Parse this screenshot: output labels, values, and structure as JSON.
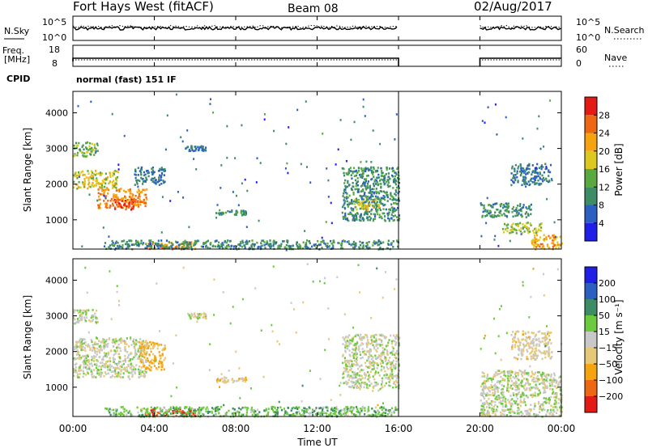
{
  "header": {
    "title": "Fort Hays West (fitACF)",
    "beam": "Beam 08",
    "date": "02/Aug/2017"
  },
  "noise_panel": {
    "left_label": "N.Sky",
    "right_label": "N.Search",
    "left_ticks": [
      "10^5",
      "10^0"
    ],
    "right_ticks": [
      "10^5",
      "10^0"
    ]
  },
  "freq_panel": {
    "left_label_1": "Freq.",
    "left_label_2": "[MHz]",
    "right_label": "Nave",
    "left_ticks": [
      "18",
      "8"
    ],
    "right_ticks": [
      "60",
      "0"
    ]
  },
  "cpid": {
    "label": "CPID",
    "value": "normal (fast) 151 IF"
  },
  "colors": {
    "power_scale": [
      "#1f1fe8",
      "#2c5fc2",
      "#3c8c66",
      "#5aa840",
      "#dcc81e",
      "#f5a30f",
      "#ee6814",
      "#e41a14"
    ],
    "velocity_scale": [
      "#e41a14",
      "#ee6814",
      "#f5a30f",
      "#e6c878",
      "#c8c8c8",
      "#6ccb3c",
      "#3c8c66",
      "#2c5fc2",
      "#1f1fe8"
    ]
  },
  "chart_data": [
    {
      "type": "heatmap",
      "name": "power",
      "ylabel": "Slant Range [km]",
      "xlabel": "Time UT",
      "xlim": [
        0,
        24
      ],
      "ylim": [
        180,
        4600
      ],
      "x_ticks": [
        "00:00",
        "04:00",
        "08:00",
        "12:00",
        "16:00",
        "20:00",
        "00:00"
      ],
      "y_ticks": [
        "1000",
        "2000",
        "3000",
        "4000"
      ],
      "data_gap_hours": [
        16.0,
        20.0
      ],
      "colorbar": {
        "label": "Power [dB]",
        "ticks": [
          "4",
          "8",
          "12",
          "16",
          "20",
          "24",
          "28"
        ],
        "range": [
          0,
          32
        ]
      },
      "regions": [
        {
          "t": [
            0.0,
            2.2
          ],
          "r": [
            1900,
            2400
          ],
          "level": 18
        },
        {
          "t": [
            1.2,
            3.6
          ],
          "r": [
            1350,
            1900
          ],
          "level": 24
        },
        {
          "t": [
            2.0,
            3.0
          ],
          "r": [
            1300,
            1600
          ],
          "level": 28
        },
        {
          "t": [
            0.0,
            1.2
          ],
          "r": [
            2800,
            3200
          ],
          "level": 14
        },
        {
          "t": [
            3.0,
            4.5
          ],
          "r": [
            2000,
            2500
          ],
          "level": 8
        },
        {
          "t": [
            5.5,
            6.5
          ],
          "r": [
            2950,
            3100
          ],
          "level": 8
        },
        {
          "t": [
            7.0,
            8.5
          ],
          "r": [
            1150,
            1300
          ],
          "level": 10
        },
        {
          "t": [
            3.5,
            6.0
          ],
          "r": [
            200,
            400
          ],
          "level": 24
        },
        {
          "t": [
            1.5,
            16.0
          ],
          "r": [
            200,
            450
          ],
          "level": 10
        },
        {
          "t": [
            13.2,
            16.0
          ],
          "r": [
            1000,
            2500
          ],
          "level": 10
        },
        {
          "t": [
            13.8,
            15.0
          ],
          "r": [
            1300,
            1600
          ],
          "level": 18
        },
        {
          "t": [
            20.0,
            22.5
          ],
          "r": [
            1100,
            1500
          ],
          "level": 10
        },
        {
          "t": [
            21.0,
            23.0
          ],
          "r": [
            650,
            950
          ],
          "level": 16
        },
        {
          "t": [
            22.5,
            24.0
          ],
          "r": [
            200,
            600
          ],
          "level": 22
        },
        {
          "t": [
            21.5,
            23.5
          ],
          "r": [
            2000,
            2600
          ],
          "level": 8
        }
      ]
    },
    {
      "type": "heatmap",
      "name": "velocity",
      "ylabel": "Slant Range [km]",
      "xlabel": "Time UT",
      "xlim": [
        0,
        24
      ],
      "ylim": [
        180,
        4600
      ],
      "x_ticks": [
        "00:00",
        "04:00",
        "08:00",
        "12:00",
        "16:00",
        "20:00",
        "00:00"
      ],
      "y_ticks": [
        "1000",
        "2000",
        "3000",
        "4000"
      ],
      "data_gap_hours": [
        16.0,
        20.0
      ],
      "colorbar": {
        "label": "Velocity [m s⁻¹]",
        "ticks": [
          "200",
          "100",
          "50",
          "15",
          "−15",
          "−50",
          "−100",
          "−200"
        ],
        "range": [
          -250,
          250
        ]
      },
      "regions": [
        {
          "t": [
            0.0,
            3.6
          ],
          "r": [
            1300,
            2400
          ],
          "level": 0
        },
        {
          "t": [
            0.0,
            1.2
          ],
          "r": [
            2800,
            3200
          ],
          "level": 0
        },
        {
          "t": [
            3.2,
            4.5
          ],
          "r": [
            1500,
            2300
          ],
          "level": -60
        },
        {
          "t": [
            7.0,
            8.5
          ],
          "r": [
            1150,
            1300
          ],
          "level": -40
        },
        {
          "t": [
            5.5,
            6.5
          ],
          "r": [
            2950,
            3100
          ],
          "level": 0
        },
        {
          "t": [
            3.5,
            6.0
          ],
          "r": [
            200,
            420
          ],
          "level": -200
        },
        {
          "t": [
            1.5,
            16.0
          ],
          "r": [
            200,
            480
          ],
          "level": 40
        },
        {
          "t": [
            13.2,
            16.0
          ],
          "r": [
            1000,
            2500
          ],
          "level": 0
        },
        {
          "t": [
            20.0,
            24.0
          ],
          "r": [
            200,
            1500
          ],
          "level": 0
        },
        {
          "t": [
            21.5,
            23.5
          ],
          "r": [
            1800,
            2600
          ],
          "level": -20
        }
      ]
    }
  ]
}
